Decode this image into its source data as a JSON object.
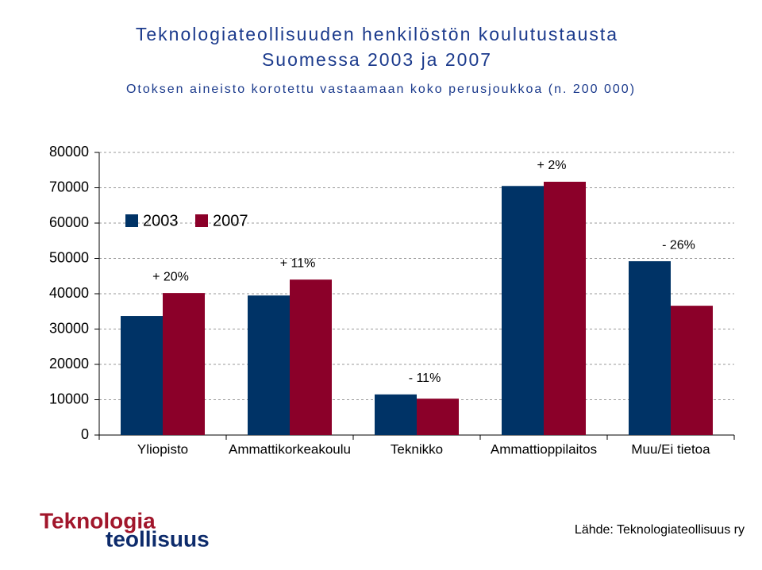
{
  "chart_data": {
    "type": "bar",
    "title": [
      "Teknologiateollisuuden henkilöstön koulutustausta",
      "Suomessa 2003 ja 2007"
    ],
    "subtitle": "Otoksen aineisto korotettu vastaamaan koko perusjoukkoa (n. 200 000)",
    "categories": [
      "Yliopisto",
      "Ammattikorkeakoulu",
      "Teknikko",
      "Ammattioppilaitos",
      "Muu/Ei tietoa"
    ],
    "series": [
      {
        "name": "2003",
        "color": "#003366",
        "values": [
          33700,
          39500,
          11500,
          70500,
          49200
        ]
      },
      {
        "name": "2007",
        "color": "#8b0029",
        "values": [
          40200,
          44000,
          10300,
          71700,
          36600
        ]
      }
    ],
    "annotations": [
      "+ 20%",
      "+ 11%",
      "- 11%",
      "+ 2%",
      "- 26%"
    ],
    "ylim": [
      0,
      80000
    ],
    "yticks": [
      0,
      10000,
      20000,
      30000,
      40000,
      50000,
      60000,
      70000,
      80000
    ],
    "grid": true,
    "legend": "upper-left",
    "logo": [
      "Teknologia",
      "teollisuus"
    ],
    "source": "Lähde: Teknologiateollisuus ry"
  }
}
